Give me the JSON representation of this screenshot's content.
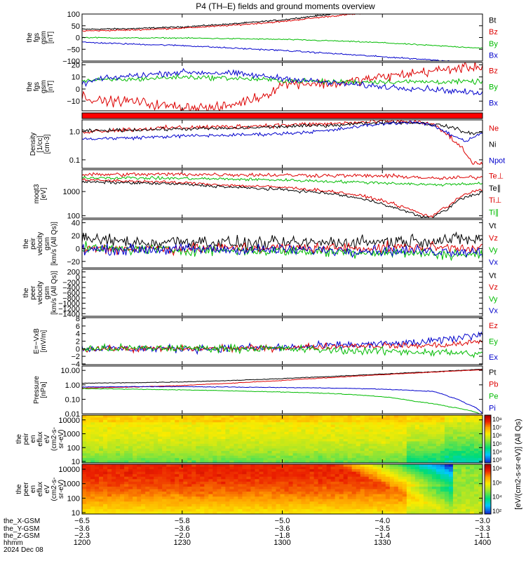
{
  "title": "P4 (TH–E) fields and ground moments overview",
  "legend_colors": {
    "Bt": "#000000",
    "Bz": "#dd0000",
    "By": "#00bb00",
    "Bx": "#0000cc",
    "Ne": "#dd0000",
    "Ni": "#000000",
    "Npot": "#0000cc",
    "Te⊥": "#dd0000",
    "Te∥": "#000000",
    "Ti⊥": "#dd0000",
    "Ti∥": "#00bb00",
    "Vt": "#000000",
    "Vz": "#dd0000",
    "Vy": "#00bb00",
    "Vx": "#0000cc",
    "Ez": "#dd0000",
    "Ey": "#00bb00",
    "Ex": "#0000cc",
    "Pt": "#000000",
    "Pb": "#dd0000",
    "Pe": "#00bb00",
    "Pi": "#0000cc"
  },
  "chart_data": [
    {
      "type": "line",
      "ylabel": [
        "the",
        "fgs",
        "gsm",
        "[nT]"
      ],
      "ylim": [
        -100,
        100
      ],
      "yticks": [
        {
          "v": 100,
          "t": "100"
        },
        {
          "v": 50,
          "t": "50"
        },
        {
          "v": 0,
          "t": "0"
        },
        {
          "v": -50,
          "t": "−50"
        },
        {
          "v": -100,
          "t": "−100"
        }
      ],
      "legend": [
        "Bt",
        "Bz",
        "By",
        "Bx"
      ],
      "series": [
        {
          "name": "Bt",
          "x": [
            1200,
            1215,
            1230,
            1245,
            1300,
            1310,
            1315,
            1320
          ],
          "values": [
            35,
            38,
            45,
            58,
            75,
            92,
            100,
            108
          ]
        },
        {
          "name": "Bz",
          "x": [
            1200,
            1215,
            1230,
            1245,
            1300,
            1310,
            1320,
            1330
          ],
          "values": [
            28,
            32,
            40,
            52,
            68,
            84,
            98,
            108
          ]
        },
        {
          "name": "By",
          "x": [
            1200,
            1215,
            1230,
            1245,
            1300,
            1315,
            1330,
            1345,
            1400
          ],
          "values": [
            0,
            -2,
            -2,
            -5,
            -8,
            -14,
            -22,
            -34,
            -45
          ]
        },
        {
          "name": "Bx",
          "x": [
            1200,
            1215,
            1230,
            1245,
            1300,
            1315,
            1330,
            1345,
            1350
          ],
          "values": [
            -20,
            -28,
            -34,
            -45,
            -55,
            -68,
            -82,
            -95,
            -100
          ]
        }
      ],
      "noise": [
        1.5,
        1.5,
        1.2,
        1.5
      ]
    },
    {
      "type": "line",
      "ylabel": [
        "the",
        "fgs",
        "gsm",
        "[nT]"
      ],
      "ylim": [
        -18,
        22
      ],
      "yticks": [
        {
          "v": 20,
          "t": "20"
        },
        {
          "v": 10,
          "t": "10"
        },
        {
          "v": 0,
          "t": "0"
        },
        {
          "v": -10,
          "t": "−10"
        }
      ],
      "legend": [
        "Bz",
        "By",
        "Bx"
      ],
      "series": [
        {
          "name": "Bz",
          "x": [
            1200,
            1205,
            1215,
            1225,
            1235,
            1240,
            1245,
            1255,
            1300,
            1305,
            1315,
            1330,
            1345,
            1400
          ],
          "values": [
            -5,
            -10,
            -10,
            -14,
            -15,
            -16,
            -13,
            -5,
            4,
            5,
            4,
            10,
            15,
            19
          ]
        },
        {
          "name": "By",
          "x": [
            1200,
            1215,
            1230,
            1245,
            1300,
            1315,
            1330,
            1345,
            1400
          ],
          "values": [
            7,
            8,
            10,
            9,
            7,
            6,
            6,
            6,
            6
          ]
        },
        {
          "name": "Bx",
          "x": [
            1200,
            1205,
            1215,
            1230,
            1245,
            1300,
            1315,
            1330,
            1345,
            1400
          ],
          "values": [
            4,
            8,
            11,
            14,
            13,
            9,
            5,
            2,
            0,
            -4
          ]
        }
      ],
      "noise": [
        2,
        1,
        1.2
      ]
    },
    {
      "type": "band",
      "color": "#ff0000"
    },
    {
      "type": "line",
      "log": true,
      "ylabel": [
        "Density",
        "[1/cc]",
        "[cm-3]"
      ],
      "ylim": [
        0.05,
        2.6
      ],
      "yticks": [
        {
          "v": 1,
          "t": "1.0"
        },
        {
          "v": 0.1,
          "t": "0.1"
        }
      ],
      "legend": [
        "Ne",
        "Ni",
        "Npot"
      ],
      "series": [
        {
          "name": "Ne",
          "x": [
            1200,
            1215,
            1230,
            1245,
            1300,
            1315,
            1330,
            1340,
            1345,
            1348,
            1352,
            1355,
            1357,
            1400
          ],
          "values": [
            1.0,
            1.2,
            1.4,
            1.5,
            1.7,
            1.9,
            2.3,
            2.2,
            1.8,
            1.0,
            0.4,
            0.15,
            0.08,
            0.07
          ]
        },
        {
          "name": "Ni",
          "x": [
            1200,
            1215,
            1230,
            1245,
            1300,
            1315,
            1330,
            1340,
            1350,
            1355,
            1400
          ],
          "values": [
            1.05,
            1.15,
            1.25,
            1.3,
            1.5,
            1.7,
            2.1,
            2.1,
            1.5,
            0.9,
            0.9
          ]
        },
        {
          "name": "Npot",
          "x": [
            1200,
            1215,
            1230,
            1245,
            1300,
            1315,
            1330,
            1340,
            1345,
            1350,
            1355,
            1400
          ],
          "values": [
            0.55,
            0.6,
            0.7,
            0.75,
            0.85,
            1.1,
            1.9,
            2.2,
            1.6,
            0.8,
            0.45,
            0.9
          ]
        }
      ],
      "noise": [
        0.04,
        0.03,
        0.03
      ]
    },
    {
      "type": "line",
      "log": true,
      "ylabel": [
        "moqt3",
        "[eV]"
      ],
      "ylim": [
        80,
        8000
      ],
      "yticks": [
        {
          "v": 1000,
          "t": "1000"
        },
        {
          "v": 100,
          "t": "100"
        }
      ],
      "legend": [
        "Te⊥",
        "Te∥",
        "Ti⊥",
        "Ti∥"
      ],
      "series": [
        {
          "name": "Ti⊥",
          "x": [
            1200,
            1230,
            1300,
            1330,
            1340,
            1345,
            1400
          ],
          "values": [
            5000,
            5200,
            4800,
            4400,
            4000,
            3400,
            4000
          ]
        },
        {
          "name": "Ti∥",
          "x": [
            1200,
            1230,
            1300,
            1315,
            1330,
            1345,
            1400
          ],
          "values": [
            3800,
            3500,
            3000,
            2600,
            2300,
            1900,
            2200
          ]
        },
        {
          "name": "Te⊥",
          "x": [
            1200,
            1215,
            1230,
            1245,
            1300,
            1315,
            1325,
            1335,
            1342,
            1345,
            1350,
            1355,
            1400
          ],
          "values": [
            3000,
            2700,
            2300,
            1800,
            1500,
            1000,
            600,
            250,
            110,
            95,
            250,
            800,
            1200
          ]
        },
        {
          "name": "Te∥",
          "x": [
            1200,
            1215,
            1230,
            1245,
            1300,
            1315,
            1325,
            1335,
            1342,
            1345,
            1350,
            1355,
            1400
          ],
          "values": [
            2500,
            2300,
            2000,
            1500,
            1200,
            800,
            450,
            180,
            85,
            80,
            200,
            600,
            900
          ]
        }
      ],
      "noise": [
        0.04,
        0.03,
        0.03,
        0.03
      ]
    },
    {
      "type": "line",
      "ylabel": [
        "the",
        "peir",
        "velocity",
        "gsm",
        "[km/s (All Qs)]"
      ],
      "ylim": [
        -30,
        45
      ],
      "yticks": [
        {
          "v": 40,
          "t": "40"
        },
        {
          "v": 20,
          "t": "20"
        },
        {
          "v": 0,
          "t": "0"
        },
        {
          "v": -20,
          "t": "−20"
        }
      ],
      "legend": [
        "Vt",
        "Vz",
        "Vy",
        "Vx"
      ],
      "series": [
        {
          "name": "Vt",
          "x": [
            1200,
            1210,
            1220,
            1230,
            1240,
            1250,
            1300,
            1320,
            1340,
            1400
          ],
          "values": [
            15,
            12,
            8,
            12,
            10,
            7,
            8,
            10,
            12,
            15
          ]
        },
        {
          "name": "Vz",
          "x": [
            1200,
            1230,
            1300,
            1330,
            1400
          ],
          "values": [
            0,
            0,
            1,
            1,
            2
          ]
        },
        {
          "name": "Vy",
          "x": [
            1200,
            1230,
            1300,
            1330,
            1400
          ],
          "values": [
            0,
            -2,
            -4,
            -6,
            -10
          ]
        },
        {
          "name": "Vx",
          "x": [
            1200,
            1230,
            1300,
            1330,
            1400
          ],
          "values": [
            -2,
            -1,
            -2,
            -3,
            -5
          ]
        }
      ],
      "noise": [
        5,
        4,
        4,
        4
      ]
    },
    {
      "type": "line",
      "ylabel": [
        "the",
        "peer",
        "velocity",
        "gsm",
        "[km/s (All Qs)]"
      ],
      "ylim": [
        -1500,
        300
      ],
      "yticks": [
        {
          "v": 200,
          "t": "200"
        },
        {
          "v": 0,
          "t": "0"
        },
        {
          "v": -200,
          "t": "−200"
        },
        {
          "v": -400,
          "t": "−400"
        },
        {
          "v": -600,
          "t": "−600"
        },
        {
          "v": -800,
          "t": "−800"
        },
        {
          "v": -1000,
          "t": "−1000"
        },
        {
          "v": -1200,
          "t": "−1200"
        },
        {
          "v": -1400,
          "t": "−1400"
        }
      ],
      "legend": [
        "Vt",
        "Vz",
        "Vy",
        "Vx"
      ],
      "series": []
    },
    {
      "type": "line",
      "ylabel": [
        "E=−VxB",
        "[mV/m]"
      ],
      "ylim": [
        -4.2,
        8.2
      ],
      "yticks": [
        {
          "v": 8,
          "t": "8"
        },
        {
          "v": 6,
          "t": "6"
        },
        {
          "v": 4,
          "t": "4"
        },
        {
          "v": 2,
          "t": "2"
        },
        {
          "v": 0,
          "t": "0"
        },
        {
          "v": -2,
          "t": "−2"
        },
        {
          "v": -4,
          "t": "−4"
        }
      ],
      "legend": [
        "Ez",
        "Ey",
        "Ex"
      ],
      "series": [
        {
          "name": "Ex",
          "x": [
            1200,
            1230,
            1300,
            1320,
            1340,
            1350,
            1400
          ],
          "values": [
            0,
            0,
            0.3,
            1,
            1.5,
            2.5,
            4
          ]
        },
        {
          "name": "Ez",
          "x": [
            1200,
            1230,
            1300,
            1320,
            1340,
            1350,
            1400
          ],
          "values": [
            0,
            0,
            0.2,
            0.8,
            0.8,
            1,
            2
          ]
        },
        {
          "name": "Ey",
          "x": [
            1200,
            1230,
            1300,
            1320,
            1340,
            1350,
            1400
          ],
          "values": [
            0,
            0.2,
            0,
            -0.5,
            -0.8,
            -1,
            -1.5
          ]
        }
      ],
      "noise": [
        0.5,
        0.4,
        0.5
      ]
    },
    {
      "type": "line",
      "log": true,
      "ylabel": [
        "Pressure",
        "[nPa]"
      ],
      "ylim": [
        0.01,
        20
      ],
      "yticks": [
        {
          "v": 10,
          "t": "10.00"
        },
        {
          "v": 1,
          "t": "1.00"
        },
        {
          "v": 0.1,
          "t": "0.10"
        },
        {
          "v": 0.01,
          "t": "0.01"
        }
      ],
      "legend": [
        "Pt",
        "Pb",
        "Pe",
        "Pi"
      ],
      "series": [
        {
          "name": "Pt",
          "x": [
            1200,
            1215,
            1230,
            1245,
            1300,
            1315,
            1330,
            1345,
            1400
          ],
          "values": [
            1.3,
            1.4,
            1.6,
            2.0,
            2.7,
            3.8,
            5.5,
            8,
            12
          ]
        },
        {
          "name": "Pb",
          "x": [
            1200,
            1215,
            1230,
            1245,
            1300,
            1315,
            1330,
            1345,
            1400
          ],
          "values": [
            0.6,
            0.7,
            0.9,
            1.3,
            2.0,
            3.2,
            5,
            7.5,
            11
          ]
        },
        {
          "name": "Pe",
          "x": [
            1200,
            1215,
            1230,
            1245,
            1300,
            1315,
            1330,
            1340,
            1350,
            1400
          ],
          "values": [
            0.55,
            0.5,
            0.45,
            0.38,
            0.32,
            0.25,
            0.15,
            0.07,
            0.03,
            0.008
          ]
        },
        {
          "name": "Pi",
          "x": [
            1200,
            1215,
            1230,
            1245,
            1300,
            1315,
            1330,
            1345,
            1350,
            1355,
            1400
          ],
          "values": [
            0.7,
            0.75,
            0.75,
            0.7,
            0.65,
            0.6,
            0.5,
            0.35,
            0.15,
            0.05,
            0.01
          ]
        }
      ],
      "noise": [
        0.01,
        0.01,
        0.01,
        0.01
      ]
    },
    {
      "type": "heatmap",
      "log": true,
      "ylabel": [
        "the",
        "peir",
        "en",
        "eflux",
        "eV",
        "(cm2-s-",
        "sr-eV)"
      ],
      "ylim": [
        8,
        22000
      ],
      "yticks": [
        {
          "v": 10000,
          "t": "10000"
        },
        {
          "v": 1000,
          "t": "1000"
        },
        {
          "v": 100,
          "t": "100"
        },
        {
          "v": 10,
          "t": "10"
        }
      ],
      "palette": "peir"
    },
    {
      "type": "heatmap",
      "log": true,
      "ylabel": [
        "the",
        "peer",
        "en",
        "eflux",
        "eV",
        "(cm2-s-",
        "sr-eV)"
      ],
      "ylim": [
        8,
        22000
      ],
      "yticks": [
        {
          "v": 10000,
          "t": "10000"
        },
        {
          "v": 1000,
          "t": "1000"
        },
        {
          "v": 100,
          "t": "100"
        },
        {
          "v": 10,
          "t": "10"
        }
      ],
      "palette": "peer"
    }
  ],
  "colorbars": [
    {
      "ticks": [
        "10⁸",
        "10⁷",
        "10⁶",
        "10⁵",
        "10⁴",
        "10³"
      ]
    },
    {
      "ticks": [
        "10⁸",
        "10⁶",
        "10⁴",
        "10²"
      ]
    }
  ],
  "colorbar_label": "[eV/(cm2-s-sr-eV)] (All Qs)",
  "x_axis": {
    "range": [
      1200,
      1400
    ],
    "tick_times": [
      1200,
      1230,
      1300,
      1330,
      1400
    ],
    "rows": [
      {
        "label": "the_X-GSM",
        "values": [
          "−6.5",
          "−5.8",
          "−5.0",
          "−4.0",
          "−3.0"
        ]
      },
      {
        "label": "the_Y-GSM",
        "values": [
          "−3.6",
          "−3.6",
          "−3.6",
          "−3.5",
          "−3.3"
        ]
      },
      {
        "label": "the_Z-GSM",
        "values": [
          "−2.3",
          "−2.0",
          "−1.8",
          "−1.4",
          "−1.1"
        ]
      },
      {
        "label": "hhmm",
        "values": [
          "1200",
          "1230",
          "1300",
          "1330",
          "1400"
        ]
      }
    ],
    "date": "2024 Dec 08"
  }
}
